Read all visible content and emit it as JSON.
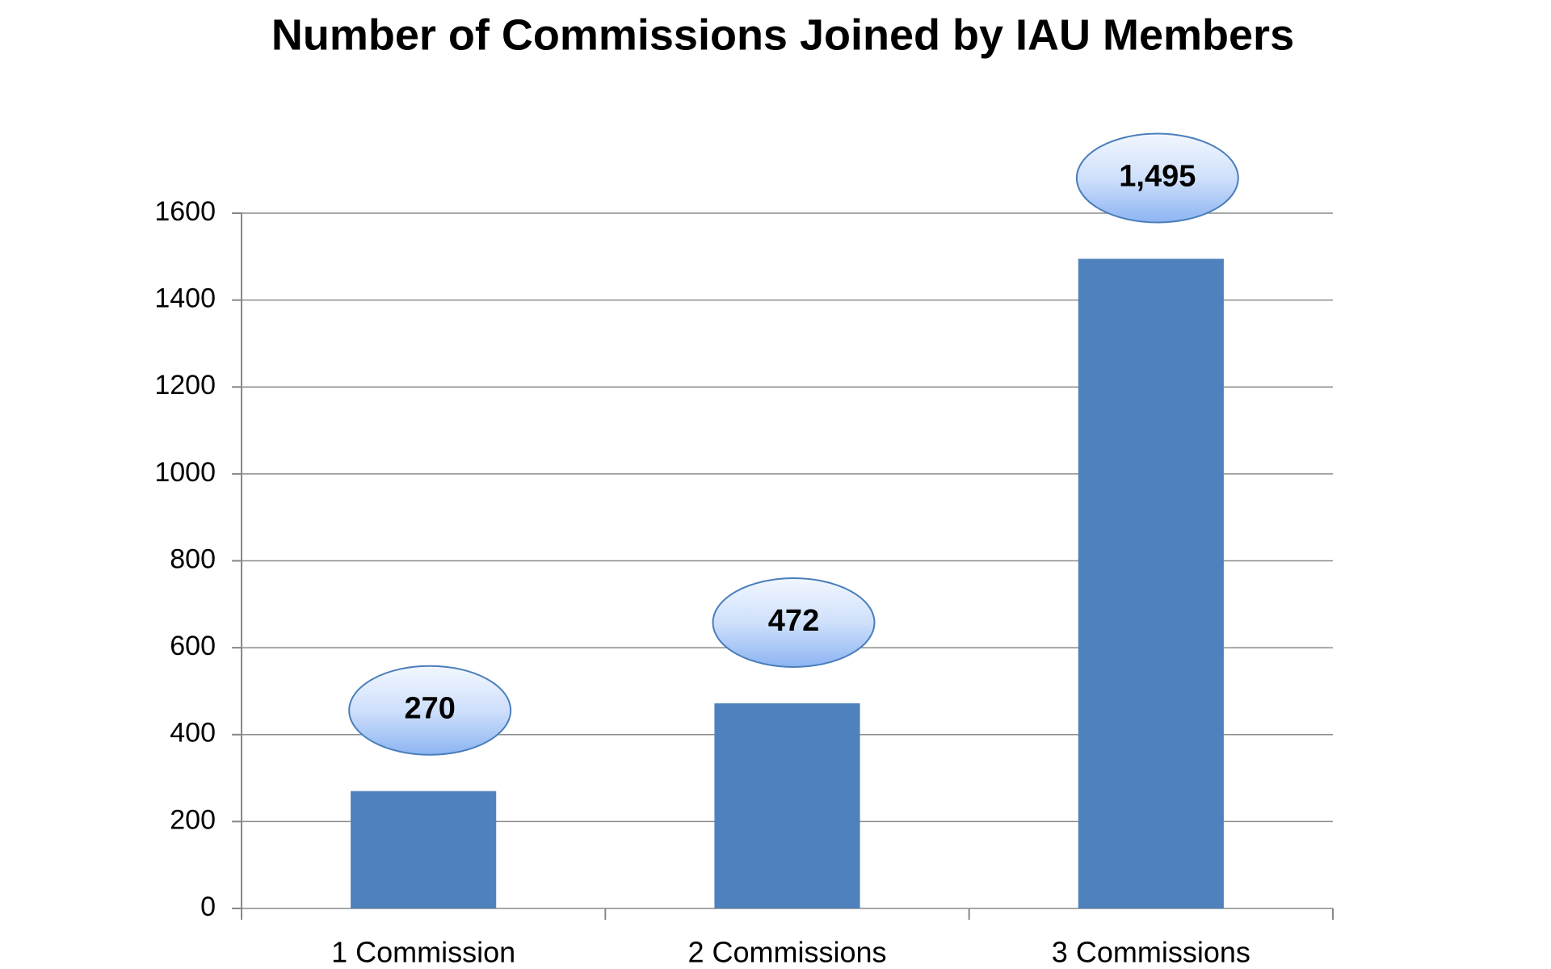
{
  "chart_data": {
    "type": "bar",
    "title": "Number of Commissions Joined by IAU Members",
    "categories": [
      "1 Commission",
      "2 Commissions",
      "3 Commissions"
    ],
    "values": [
      270,
      472,
      1495
    ],
    "value_labels": [
      "270",
      "472",
      "1,495"
    ],
    "color": "#4f81bd",
    "ylim": [
      0,
      1600
    ],
    "yticks": [
      0,
      200,
      400,
      600,
      800,
      1000,
      1200,
      1400,
      1600
    ],
    "grid": true
  }
}
